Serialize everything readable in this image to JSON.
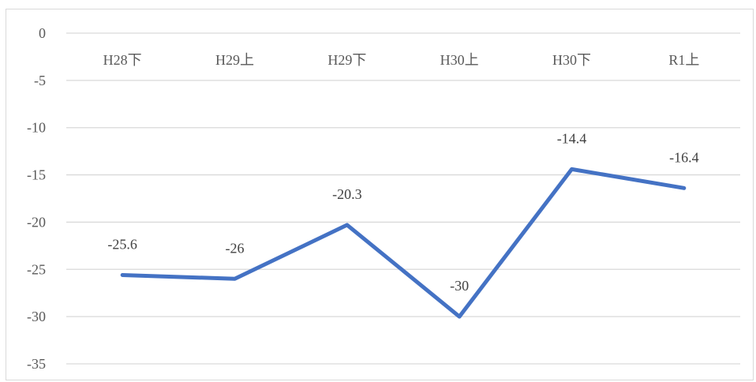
{
  "chart_data": {
    "type": "line",
    "title": "",
    "xlabel": "",
    "ylabel": "",
    "categories": [
      "H28下",
      "H29上",
      "H29下",
      "H30上",
      "H30下",
      "R1上"
    ],
    "series": [
      {
        "values": [
          -25.6,
          -26,
          -20.3,
          -30,
          -14.4,
          -16.4
        ]
      }
    ],
    "data_labels": [
      "-25.6",
      "-26",
      "-20.3",
      "-30",
      "-14.4",
      "-16.4"
    ],
    "ylim": [
      -35,
      0
    ],
    "yticks": [
      0,
      -5,
      -10,
      -15,
      -20,
      -25,
      -30,
      -35
    ],
    "ytick_labels": [
      "0",
      "-5",
      "-10",
      "-15",
      "-20",
      "-25",
      "-30",
      "-35"
    ],
    "grid": true,
    "legend": false,
    "category_axis_position": "top",
    "colors": {
      "line": "#4472c4",
      "grid": "#d9d9d9",
      "text": "#595959"
    }
  }
}
